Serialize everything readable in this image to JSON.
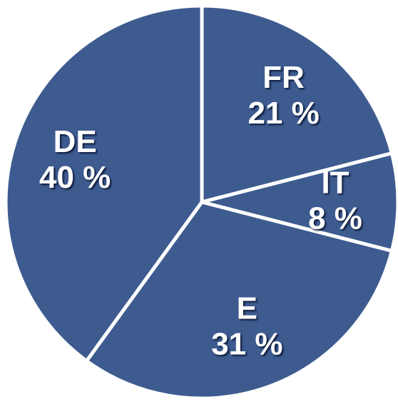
{
  "chart_data": {
    "type": "pie",
    "categories": [
      "FR",
      "IT",
      "E",
      "DE"
    ],
    "values": [
      21,
      8,
      31,
      40
    ],
    "value_labels": [
      "21 %",
      "8 %",
      "31 %",
      "40 %"
    ],
    "color": "#3d5b8f"
  }
}
